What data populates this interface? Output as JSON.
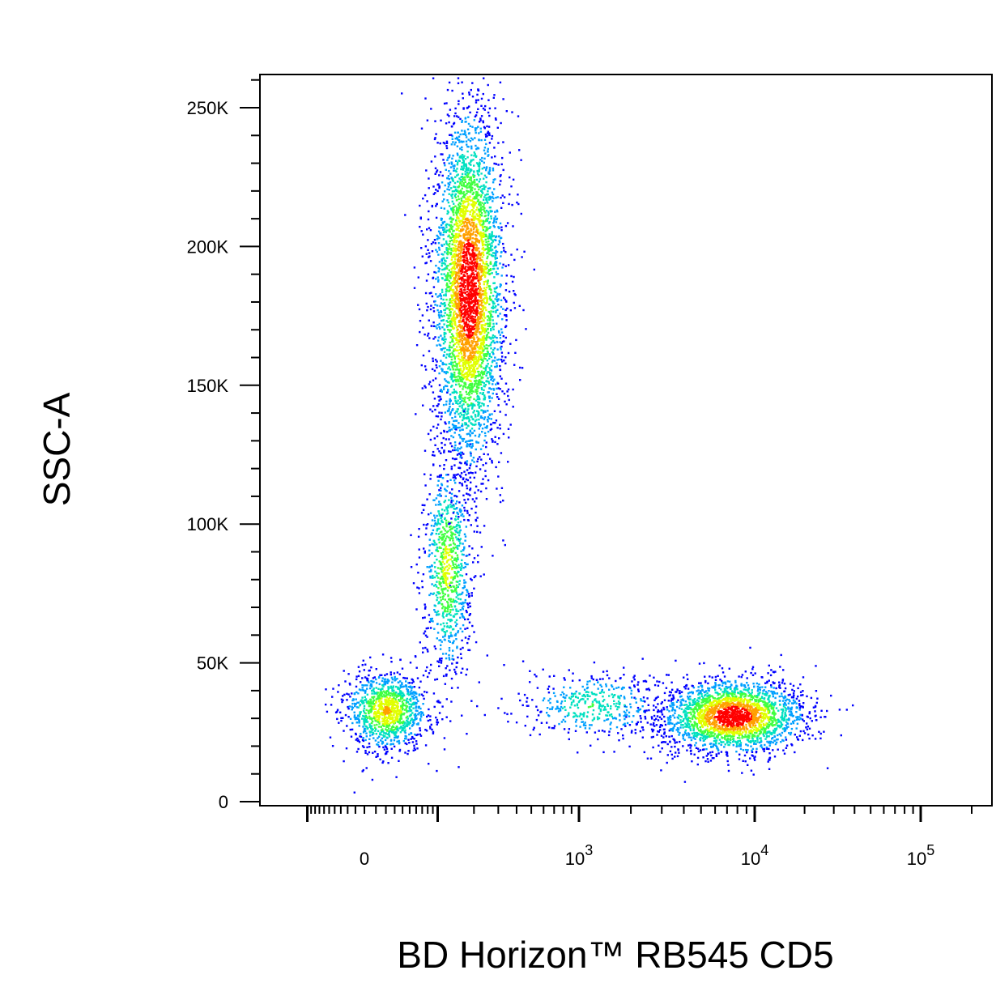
{
  "chart_data": {
    "type": "scatter",
    "subtype": "flow-cytometry-density-dot-plot",
    "xlabel": "BD Horizon™ RB545 CD5",
    "ylabel": "SSC-A",
    "x_scale": "biexponential",
    "y_scale": "linear",
    "xlim": [
      -200,
      200000
    ],
    "ylim": [
      0,
      262144
    ],
    "x_tick_labels": [
      {
        "value": 0,
        "label": "0",
        "exp": ""
      },
      {
        "value": 1000,
        "label": "10",
        "exp": "3"
      },
      {
        "value": 10000,
        "label": "10",
        "exp": "4"
      },
      {
        "value": 100000,
        "label": "10",
        "exp": "5"
      }
    ],
    "y_tick_labels": [
      {
        "value": 0,
        "label": "0"
      },
      {
        "value": 50000,
        "label": "50K"
      },
      {
        "value": 100000,
        "label": "100K"
      },
      {
        "value": 150000,
        "label": "150K"
      },
      {
        "value": 200000,
        "label": "200K"
      },
      {
        "value": 250000,
        "label": "250K"
      }
    ],
    "density_colors": [
      "#0000ff",
      "#00a0ff",
      "#00e0c0",
      "#40ff40",
      "#e0ff00",
      "#ffa000",
      "#ff0000"
    ],
    "populations": [
      {
        "description_key": "granulocytes",
        "cd5": 180,
        "ssc": 185000,
        "sd_cd5_display": 0.1,
        "sd_ssc": 32000,
        "weight": 0.45
      },
      {
        "description_key": "monocytes",
        "cd5": 120,
        "ssc": 85000,
        "sd_cd5_display": 0.07,
        "sd_ssc": 20000,
        "weight": 0.1
      },
      {
        "description_key": "cd5-negative-lymphocytes",
        "cd5": 20,
        "ssc": 33000,
        "sd_cd5_display": 0.12,
        "sd_ssc": 7000,
        "weight": 0.13
      },
      {
        "description_key": "cd5-positive-lymphocytes",
        "cd5": 7500,
        "ssc": 31000,
        "sd_cd5_display": 0.2,
        "sd_ssc": 6500,
        "weight": 0.27
      },
      {
        "description_key": "cd5-dim-lymphocytes",
        "cd5": 1200,
        "ssc": 35000,
        "sd_cd5_display": 0.2,
        "sd_ssc": 6000,
        "weight": 0.05
      }
    ]
  }
}
